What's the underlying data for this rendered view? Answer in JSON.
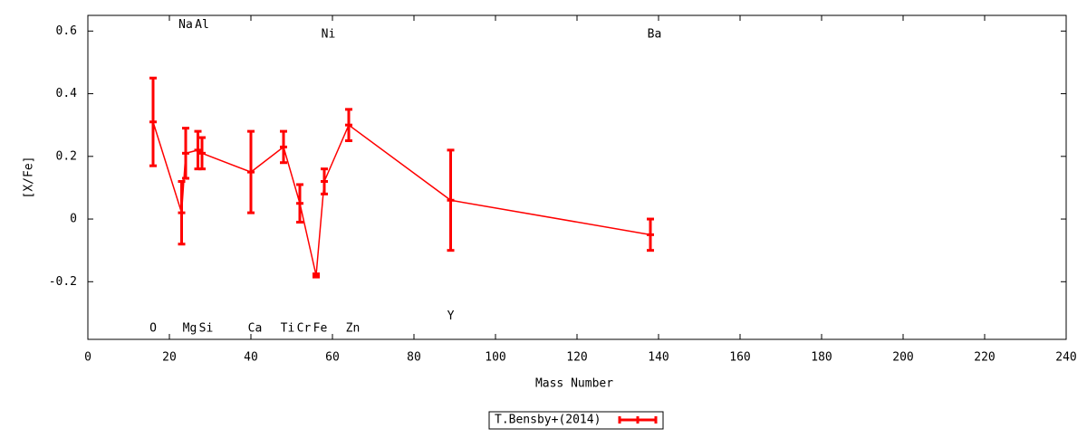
{
  "chart_data": {
    "type": "errorline",
    "x_label": "Mass Number",
    "y_label": "[X/Fe]",
    "xlim": [
      0,
      240
    ],
    "xticks": [
      0,
      20,
      40,
      60,
      80,
      100,
      120,
      140,
      160,
      180,
      200,
      220,
      240
    ],
    "ylim": [
      -0.384,
      0.65
    ],
    "yticks": [
      -0.2,
      0,
      0.2,
      0.4,
      0.6
    ],
    "legend": "bottom-center",
    "series": [
      {
        "name": "T.Bensby+(2014)",
        "color": "#ff0000",
        "x": [
          16,
          23,
          24,
          27,
          28,
          40,
          48,
          52,
          56,
          58,
          64,
          89,
          138
        ],
        "values": [
          0.31,
          0.02,
          0.21,
          0.22,
          0.21,
          0.15,
          0.23,
          0.05,
          -0.18,
          0.12,
          0.3,
          0.06,
          -0.05
        ],
        "errors": [
          0.14,
          0.1,
          0.08,
          0.06,
          0.05,
          0.13,
          0.05,
          0.06,
          0.005,
          0.04,
          0.05,
          0.16,
          0.05
        ]
      }
    ],
    "annotations": [
      {
        "text": "O",
        "x": 16,
        "y": -0.35
      },
      {
        "text": "Na",
        "x": 24,
        "y": 0.62
      },
      {
        "text": "Al",
        "x": 28,
        "y": 0.62
      },
      {
        "text": "Mg",
        "x": 25,
        "y": -0.35
      },
      {
        "text": "Si",
        "x": 29,
        "y": -0.35
      },
      {
        "text": "Ca",
        "x": 41,
        "y": -0.35
      },
      {
        "text": "Ti",
        "x": 49,
        "y": -0.35
      },
      {
        "text": "Cr",
        "x": 53,
        "y": -0.35
      },
      {
        "text": "Fe",
        "x": 57,
        "y": -0.35
      },
      {
        "text": "Ni",
        "x": 59,
        "y": 0.59
      },
      {
        "text": "Zn",
        "x": 65,
        "y": -0.35
      },
      {
        "text": "Y",
        "x": 89,
        "y": -0.31
      },
      {
        "text": "Ba",
        "x": 139,
        "y": 0.59
      }
    ]
  }
}
